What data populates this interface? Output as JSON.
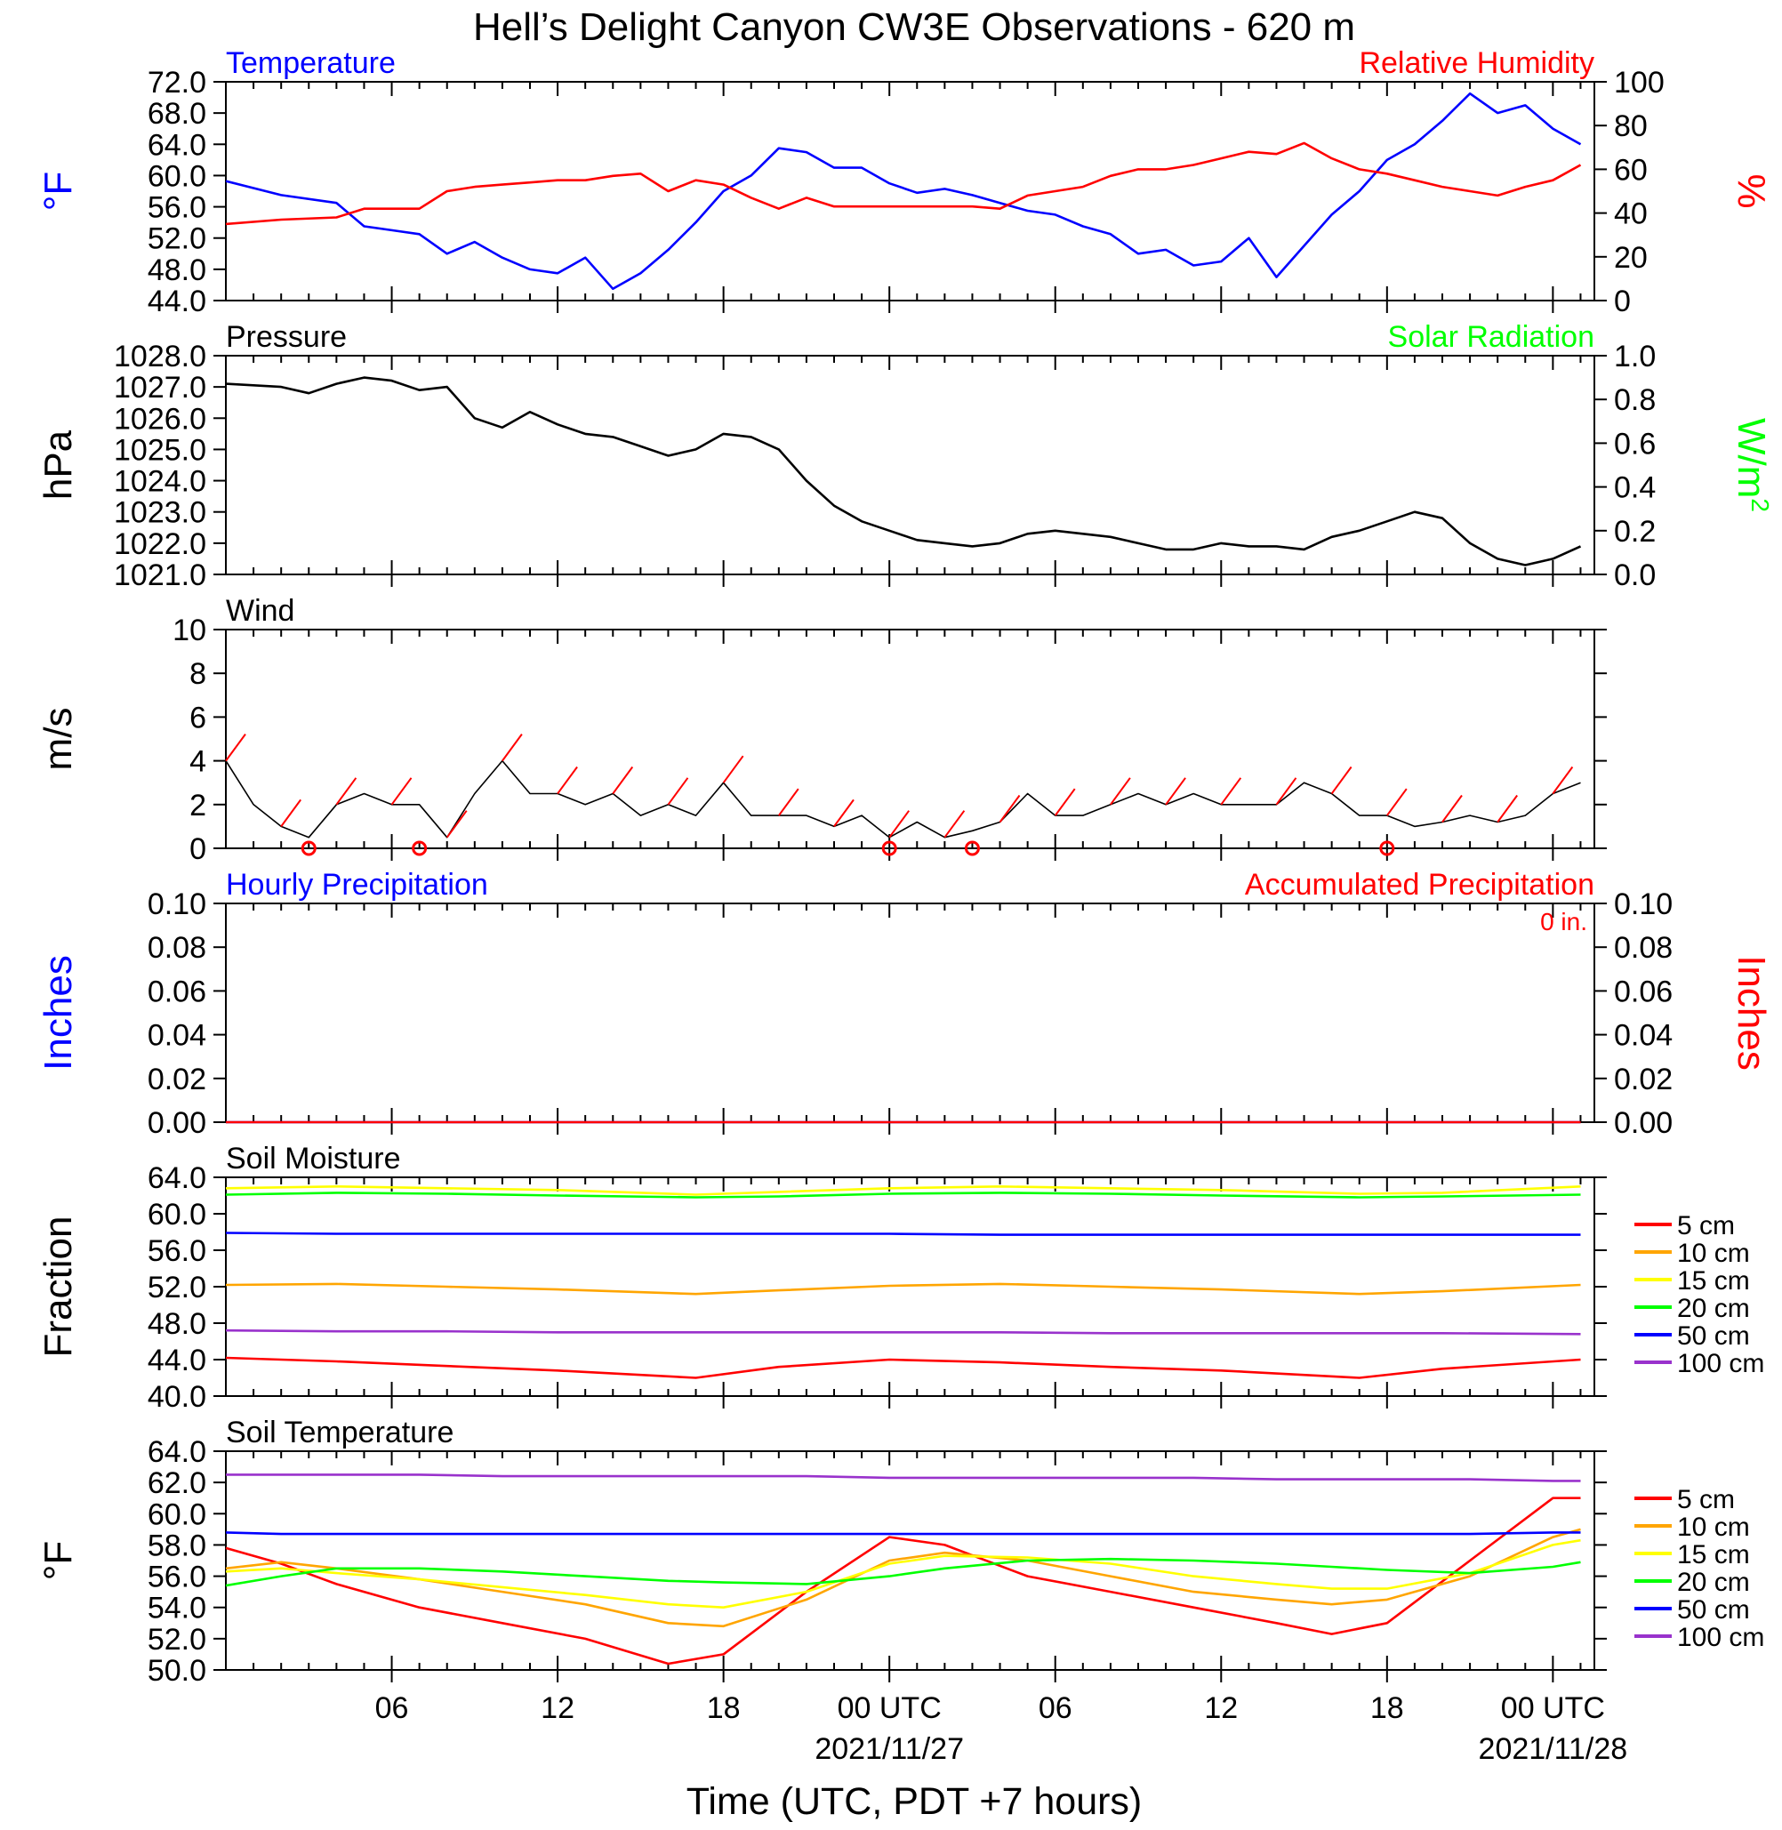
{
  "title": "Hell’s Delight Canyon CW3E Observations - 620 m",
  "xlabel": "Time (UTC, PDT +7 hours)",
  "x_ticks": [
    "06",
    "12",
    "18",
    "00 UTC",
    "06",
    "12",
    "18",
    "00 UTC"
  ],
  "x_dates": [
    "2021/11/27",
    "2021/11/28"
  ],
  "chart_data": [
    {
      "type": "line",
      "panel": "temperature-humidity",
      "left_title": "Temperature",
      "right_title": "Relative Humidity",
      "ylabel": "°F",
      "y2label": "%",
      "ylim": [
        44.0,
        72.0
      ],
      "y2lim": [
        0,
        100
      ],
      "yticks": [
        "44.0",
        "48.0",
        "52.0",
        "56.0",
        "60.0",
        "64.0",
        "68.0",
        "72.0"
      ],
      "y2ticks": [
        "0",
        "20",
        "40",
        "60",
        "80",
        "100"
      ],
      "x_hours": [
        0,
        2,
        4,
        5,
        6,
        7,
        8,
        9,
        10,
        11,
        12,
        13,
        14,
        15,
        16,
        17,
        18,
        19,
        20,
        21,
        22,
        23,
        24,
        25,
        26,
        27,
        28,
        29,
        30,
        31,
        32,
        33,
        34,
        35,
        36,
        37,
        38,
        39,
        40,
        41,
        42,
        43,
        44,
        45,
        46,
        47,
        48,
        49
      ],
      "series": [
        {
          "name": "Temperature",
          "color": "#0000ff",
          "axis": "left",
          "values": [
            59.3,
            57.5,
            56.5,
            53.5,
            53.0,
            52.5,
            50.0,
            51.5,
            49.5,
            48.0,
            47.5,
            49.5,
            45.5,
            47.5,
            50.5,
            54.0,
            58.0,
            60.0,
            63.5,
            63.0,
            61.0,
            61.0,
            59.0,
            57.8,
            58.3,
            57.5,
            56.5,
            55.5,
            55.0,
            53.5,
            52.5,
            50.0,
            50.5,
            48.5,
            49.0,
            52.0,
            47.0,
            51.0,
            55.0,
            58.0,
            62.0,
            64.0,
            67.0,
            70.5,
            68.0,
            69.0,
            66.0,
            64.0
          ]
        },
        {
          "name": "Relative Humidity",
          "color": "#ff0000",
          "axis": "right",
          "values": [
            35,
            37,
            38,
            42,
            42,
            42,
            50,
            52,
            53,
            54,
            55,
            55,
            57,
            58,
            50,
            55,
            53,
            47,
            42,
            47,
            43,
            43,
            43,
            43,
            43,
            43,
            42,
            48,
            50,
            52,
            57,
            60,
            60,
            62,
            65,
            68,
            67,
            72,
            65,
            60,
            58,
            55,
            52,
            50,
            48,
            52,
            55,
            62
          ]
        }
      ]
    },
    {
      "type": "line",
      "panel": "pressure-solar",
      "left_title": "Pressure",
      "right_title": "Solar Radiation",
      "ylabel": "hPa",
      "y2label": "W/m",
      "y2label_sup": "2",
      "ylim": [
        1021.0,
        1028.0
      ],
      "y2lim": [
        0.0,
        1.0
      ],
      "yticks": [
        "1021.0",
        "1022.0",
        "1023.0",
        "1024.0",
        "1025.0",
        "1026.0",
        "1027.0",
        "1028.0"
      ],
      "y2ticks": [
        "0.0",
        "0.2",
        "0.4",
        "0.6",
        "0.8",
        "1.0"
      ],
      "x_hours": [
        0,
        2,
        3,
        4,
        5,
        6,
        7,
        8,
        9,
        10,
        11,
        12,
        13,
        14,
        15,
        16,
        17,
        18,
        19,
        20,
        21,
        22,
        23,
        24,
        25,
        26,
        27,
        28,
        29,
        30,
        31,
        32,
        33,
        34,
        35,
        36,
        37,
        38,
        39,
        40,
        41,
        42,
        43,
        44,
        45,
        46,
        47,
        48,
        49
      ],
      "series": [
        {
          "name": "Pressure",
          "color": "#000000",
          "axis": "left",
          "values": [
            1027.1,
            1027.0,
            1026.8,
            1027.1,
            1027.3,
            1027.2,
            1026.9,
            1027.0,
            1026.0,
            1025.7,
            1026.2,
            1025.8,
            1025.5,
            1025.4,
            1025.1,
            1024.8,
            1025.0,
            1025.5,
            1025.4,
            1025.0,
            1024.0,
            1023.2,
            1022.7,
            1022.4,
            1022.1,
            1022.0,
            1021.9,
            1022.0,
            1022.3,
            1022.4,
            1022.3,
            1022.2,
            1022.0,
            1021.8,
            1021.8,
            1022.0,
            1021.9,
            1021.9,
            1021.8,
            1022.2,
            1022.4,
            1022.7,
            1023.0,
            1022.8,
            1022.0,
            1021.5,
            1021.3,
            1021.5,
            1021.9
          ]
        },
        {
          "name": "Solar Radiation",
          "color": "#00ff00",
          "axis": "right",
          "values": []
        }
      ]
    },
    {
      "type": "line",
      "panel": "wind",
      "left_title": "Wind",
      "ylabel": "m/s",
      "ylim": [
        0,
        10
      ],
      "yticks": [
        "0",
        "2",
        "4",
        "6",
        "8",
        "10"
      ],
      "x_hours": [
        0,
        1,
        2,
        3,
        4,
        5,
        6,
        7,
        8,
        9,
        10,
        11,
        12,
        13,
        14,
        15,
        16,
        17,
        18,
        19,
        20,
        21,
        22,
        23,
        24,
        25,
        26,
        27,
        28,
        29,
        30,
        31,
        32,
        33,
        34,
        35,
        36,
        37,
        38,
        39,
        40,
        41,
        42,
        43,
        44,
        45,
        46,
        47,
        48,
        49
      ],
      "series": [
        {
          "name": "Wind speed",
          "color": "#000000",
          "values": [
            4.0,
            2.0,
            1.0,
            0.5,
            2.0,
            2.5,
            2.0,
            2.0,
            0.5,
            2.5,
            4.0,
            2.5,
            2.5,
            2.0,
            2.5,
            1.5,
            2.0,
            1.5,
            3.0,
            1.5,
            1.5,
            1.5,
            1.0,
            1.5,
            0.5,
            1.2,
            0.5,
            0.8,
            1.2,
            2.5,
            1.5,
            1.5,
            2.0,
            2.5,
            2.0,
            2.5,
            2.0,
            2.0,
            2.0,
            3.0,
            2.5,
            1.5,
            1.5,
            1.0,
            1.2,
            1.5,
            1.2,
            1.5,
            2.5,
            3.0
          ]
        }
      ],
      "barbs_color": "#ff0000",
      "calm_hours": [
        3,
        7,
        24,
        27,
        42
      ]
    },
    {
      "type": "line",
      "panel": "precipitation",
      "left_title": "Hourly Precipitation",
      "right_title": "Accumulated Precipitation",
      "annotation": "0 in.",
      "ylabel": "Inches",
      "y2label": "Inches",
      "ylim": [
        0.0,
        0.1
      ],
      "y2lim": [
        0.0,
        0.1
      ],
      "yticks": [
        "0.00",
        "0.02",
        "0.04",
        "0.06",
        "0.08",
        "0.10"
      ],
      "y2ticks": [
        "0.00",
        "0.02",
        "0.04",
        "0.06",
        "0.08",
        "0.10"
      ],
      "x_hours": [
        0,
        49
      ],
      "series": [
        {
          "name": "Hourly Precipitation",
          "color": "#0000ff",
          "values": [
            0,
            0
          ]
        },
        {
          "name": "Accumulated Precipitation",
          "color": "#ff0000",
          "values": [
            0,
            0
          ]
        }
      ]
    },
    {
      "type": "line",
      "panel": "soil-moisture",
      "left_title": "Soil Moisture",
      "ylabel": "Fraction",
      "ylim": [
        40.0,
        64.0
      ],
      "yticks": [
        "40.0",
        "44.0",
        "48.0",
        "52.0",
        "56.0",
        "60.0",
        "64.0"
      ],
      "x_hours": [
        0,
        4,
        8,
        12,
        17,
        20,
        24,
        28,
        32,
        36,
        41,
        44,
        49
      ],
      "series": [
        {
          "name": "5 cm",
          "color": "#ff0000",
          "values": [
            44.2,
            43.8,
            43.3,
            42.8,
            42.0,
            43.2,
            44.0,
            43.7,
            43.2,
            42.8,
            42.0,
            43.0,
            44.0
          ]
        },
        {
          "name": "10 cm",
          "color": "#ffa500",
          "values": [
            52.2,
            52.3,
            52.0,
            51.7,
            51.2,
            51.6,
            52.1,
            52.3,
            52.0,
            51.7,
            51.2,
            51.5,
            52.2
          ]
        },
        {
          "name": "15 cm",
          "color": "#ffff00",
          "values": [
            62.8,
            63.0,
            62.8,
            62.6,
            62.1,
            62.4,
            62.8,
            63.0,
            62.8,
            62.6,
            62.2,
            62.3,
            63.0
          ]
        },
        {
          "name": "20 cm",
          "color": "#00ff00",
          "values": [
            62.1,
            62.3,
            62.2,
            62.0,
            61.8,
            61.9,
            62.2,
            62.3,
            62.2,
            62.0,
            61.8,
            61.9,
            62.1
          ]
        },
        {
          "name": "50 cm",
          "color": "#0000ff",
          "values": [
            57.9,
            57.8,
            57.8,
            57.8,
            57.8,
            57.8,
            57.8,
            57.7,
            57.7,
            57.7,
            57.7,
            57.7,
            57.7
          ]
        },
        {
          "name": "100 cm",
          "color": "#9932cc",
          "values": [
            47.2,
            47.1,
            47.1,
            47.0,
            47.0,
            47.0,
            47.0,
            47.0,
            46.9,
            46.9,
            46.9,
            46.9,
            46.8
          ]
        }
      ]
    },
    {
      "type": "line",
      "panel": "soil-temperature",
      "left_title": "Soil Temperature",
      "ylabel": "°F",
      "ylim": [
        50.0,
        64.0
      ],
      "yticks": [
        "50.0",
        "52.0",
        "54.0",
        "56.0",
        "58.0",
        "60.0",
        "62.0",
        "64.0"
      ],
      "x_hours": [
        0,
        2,
        4,
        7,
        10,
        13,
        16,
        18,
        21,
        24,
        26,
        29,
        32,
        35,
        38,
        40,
        42,
        45,
        48,
        49
      ],
      "series": [
        {
          "name": "5 cm",
          "color": "#ff0000",
          "values": [
            57.8,
            56.8,
            55.5,
            54.0,
            53.0,
            52.0,
            50.4,
            51.0,
            55.0,
            58.5,
            58.0,
            56.0,
            55.0,
            54.0,
            53.0,
            52.3,
            53.0,
            57.0,
            61.0,
            61.0
          ]
        },
        {
          "name": "10 cm",
          "color": "#ffa500",
          "values": [
            56.5,
            56.9,
            56.5,
            55.8,
            55.0,
            54.2,
            53.0,
            52.8,
            54.5,
            57.0,
            57.5,
            57.0,
            56.0,
            55.0,
            54.5,
            54.2,
            54.5,
            56.0,
            58.5,
            59.0
          ]
        },
        {
          "name": "15 cm",
          "color": "#ffff00",
          "values": [
            56.3,
            56.5,
            56.2,
            55.8,
            55.3,
            54.8,
            54.2,
            54.0,
            55.0,
            56.8,
            57.3,
            57.2,
            56.8,
            56.0,
            55.5,
            55.2,
            55.2,
            56.2,
            58.0,
            58.3
          ]
        },
        {
          "name": "20 cm",
          "color": "#00ff00",
          "values": [
            55.4,
            56.0,
            56.5,
            56.5,
            56.3,
            56.0,
            55.7,
            55.6,
            55.5,
            56.0,
            56.5,
            57.0,
            57.1,
            57.0,
            56.8,
            56.6,
            56.4,
            56.2,
            56.6,
            56.9
          ]
        },
        {
          "name": "50 cm",
          "color": "#0000ff",
          "values": [
            58.8,
            58.7,
            58.7,
            58.7,
            58.7,
            58.7,
            58.7,
            58.7,
            58.7,
            58.7,
            58.7,
            58.7,
            58.7,
            58.7,
            58.7,
            58.7,
            58.7,
            58.7,
            58.8,
            58.8
          ]
        },
        {
          "name": "100 cm",
          "color": "#9932cc",
          "values": [
            62.5,
            62.5,
            62.5,
            62.5,
            62.4,
            62.4,
            62.4,
            62.4,
            62.4,
            62.3,
            62.3,
            62.3,
            62.3,
            62.3,
            62.2,
            62.2,
            62.2,
            62.2,
            62.1,
            62.1
          ]
        }
      ]
    }
  ]
}
